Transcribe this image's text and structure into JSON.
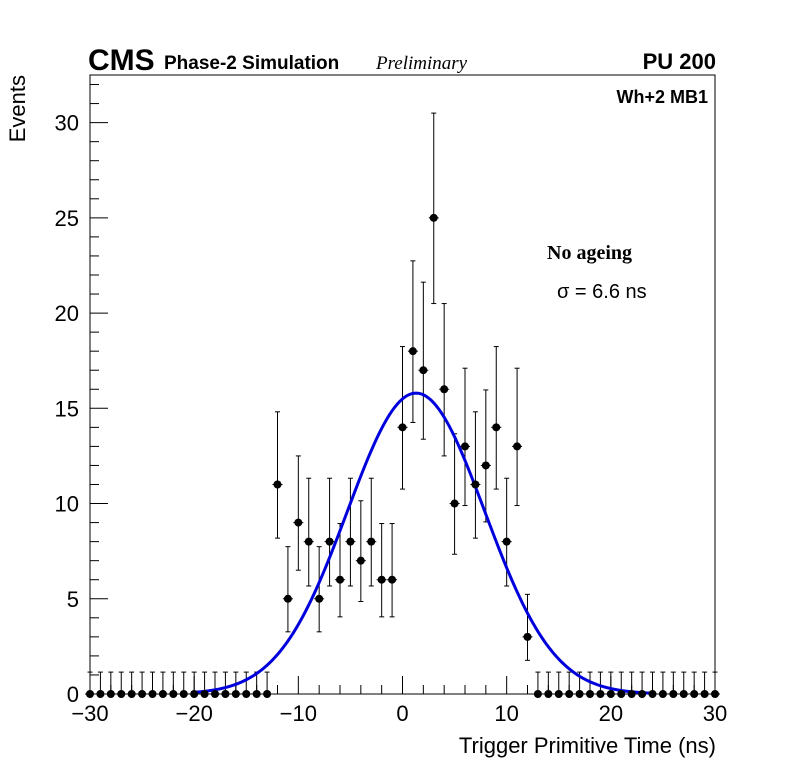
{
  "header": {
    "cms_label": "CMS",
    "sim_label": "Phase-2 Simulation",
    "prelim_label": "Preliminary",
    "pu_label": "PU 200",
    "station_label": "Wh+2 MB1"
  },
  "legend": {
    "ageing_label": "No ageing",
    "sigma_label": "σ = 6.6 ns"
  },
  "chart_data": {
    "type": "scatter",
    "title": "",
    "xlabel": "Trigger Primitive Time (ns)",
    "ylabel": "Events",
    "xlim": [
      -30,
      30
    ],
    "ylim": [
      0,
      32.5
    ],
    "x_ticks": [
      -30,
      -20,
      -10,
      0,
      10,
      20,
      30
    ],
    "x_tick_labels": [
      "−30",
      "−20",
      "−10",
      "0",
      "10",
      "20",
      "30"
    ],
    "y_ticks": [
      0,
      5,
      10,
      15,
      20,
      25,
      30
    ],
    "y_tick_labels": [
      "0",
      "5",
      "10",
      "15",
      "20",
      "25",
      "30"
    ],
    "grid": false,
    "series": [
      {
        "name": "Data (histogram)",
        "style": "points-with-errorbars",
        "color": "#000000",
        "x": [
          -30,
          -29,
          -28,
          -27,
          -26,
          -25,
          -24,
          -23,
          -22,
          -21,
          -20,
          -19,
          -18,
          -17,
          -16,
          -15,
          -14,
          -13,
          -12,
          -11,
          -10,
          -9,
          -8,
          -7,
          -6,
          -5,
          -4,
          -3,
          -2,
          -1,
          0,
          1,
          2,
          3,
          4,
          5,
          6,
          7,
          8,
          9,
          10,
          11,
          12,
          13,
          14,
          15,
          16,
          17,
          18,
          19,
          20,
          21,
          22,
          23,
          24,
          25,
          26,
          27,
          28,
          29,
          30
        ],
        "values": [
          0,
          0,
          0,
          0,
          0,
          0,
          0,
          0,
          0,
          0,
          0,
          0,
          0,
          0,
          0,
          0,
          0,
          0,
          11,
          5,
          9,
          8,
          5,
          8,
          6,
          8,
          7,
          8,
          6,
          6,
          14,
          18,
          17,
          25,
          16,
          10,
          13,
          11,
          12,
          14,
          8,
          13,
          3,
          0,
          0,
          0,
          0,
          0,
          0,
          0,
          0,
          0,
          0,
          0,
          0,
          0,
          0,
          0,
          0,
          0,
          0
        ]
      },
      {
        "name": "Gaussian fit",
        "style": "line",
        "color": "#0000dd",
        "fit": {
          "amplitude": 15.8,
          "mean": 1.3,
          "sigma": 6.6
        }
      }
    ]
  }
}
